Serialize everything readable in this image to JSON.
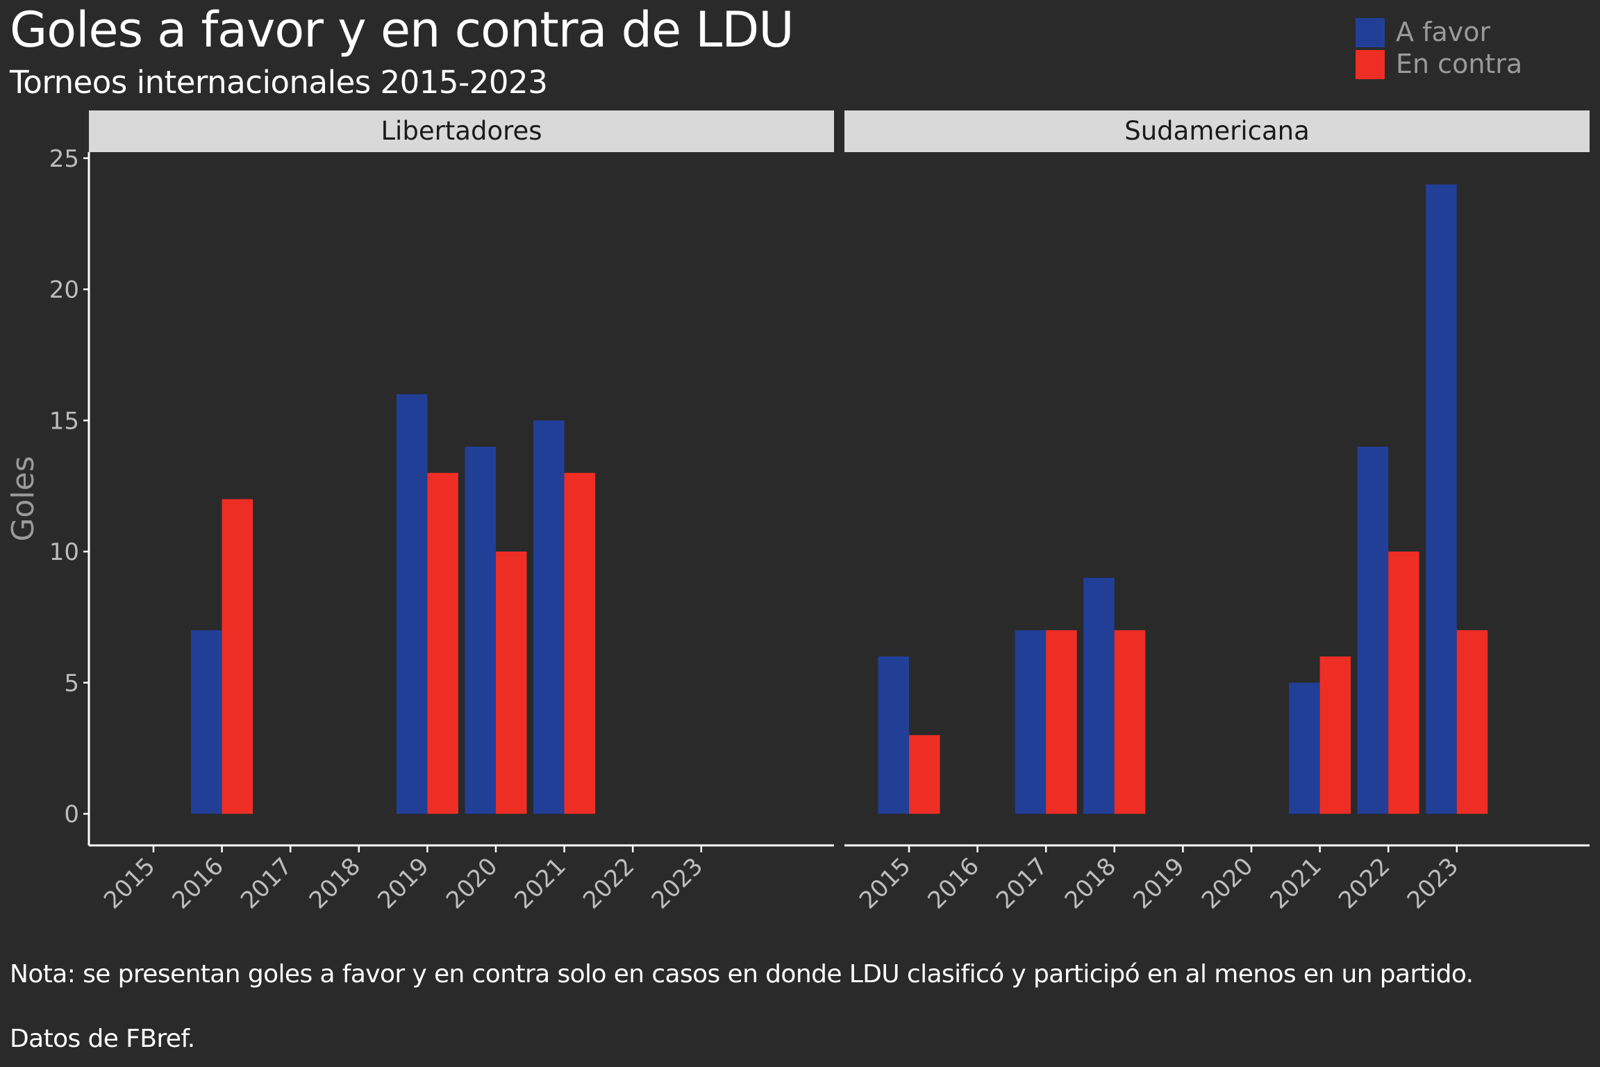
{
  "title": "Goles a favor y en contra de LDU",
  "subtitle": "Torneos internacionales 2015-2023",
  "legend": [
    {
      "label": "A favor",
      "color": "#223f98"
    },
    {
      "label": "En contra",
      "color": "#ee2e24"
    }
  ],
  "footer": {
    "note": "Nota: se presentan goles a favor y en contra solo en casos en donde LDU clasificó y participó en al menos en un partido.",
    "source": "Datos de FBref."
  },
  "colors": {
    "background": "#2a2a2a",
    "strip": "#d9d9d9",
    "axis": "#ffffff",
    "tick_label": "#bdbdbd",
    "axis_title": "#9a9a9a"
  },
  "chart_data": {
    "type": "bar",
    "title": "Goles a favor y en contra de LDU",
    "subtitle": "Torneos internacionales 2015-2023",
    "xlabel": "",
    "ylabel": "Goles",
    "ylim": [
      -1.2,
      25.5
    ],
    "yticks": [
      0,
      5,
      10,
      15,
      20,
      25
    ],
    "grid": false,
    "legend_position": "top-right",
    "categories": [
      "2015",
      "2016",
      "2017",
      "2018",
      "2019",
      "2020",
      "2021",
      "2022",
      "2023"
    ],
    "panels": [
      {
        "name": "Libertadores",
        "series": [
          {
            "name": "A favor",
            "values": [
              null,
              7,
              null,
              null,
              16,
              14,
              15,
              null,
              null
            ]
          },
          {
            "name": "En contra",
            "values": [
              null,
              12,
              null,
              null,
              13,
              10,
              13,
              null,
              null
            ]
          }
        ]
      },
      {
        "name": "Sudamericana",
        "series": [
          {
            "name": "A favor",
            "values": [
              6,
              null,
              7,
              9,
              null,
              null,
              5,
              14,
              24
            ]
          },
          {
            "name": "En contra",
            "values": [
              3,
              null,
              7,
              7,
              null,
              null,
              6,
              10,
              7
            ]
          }
        ]
      }
    ]
  }
}
